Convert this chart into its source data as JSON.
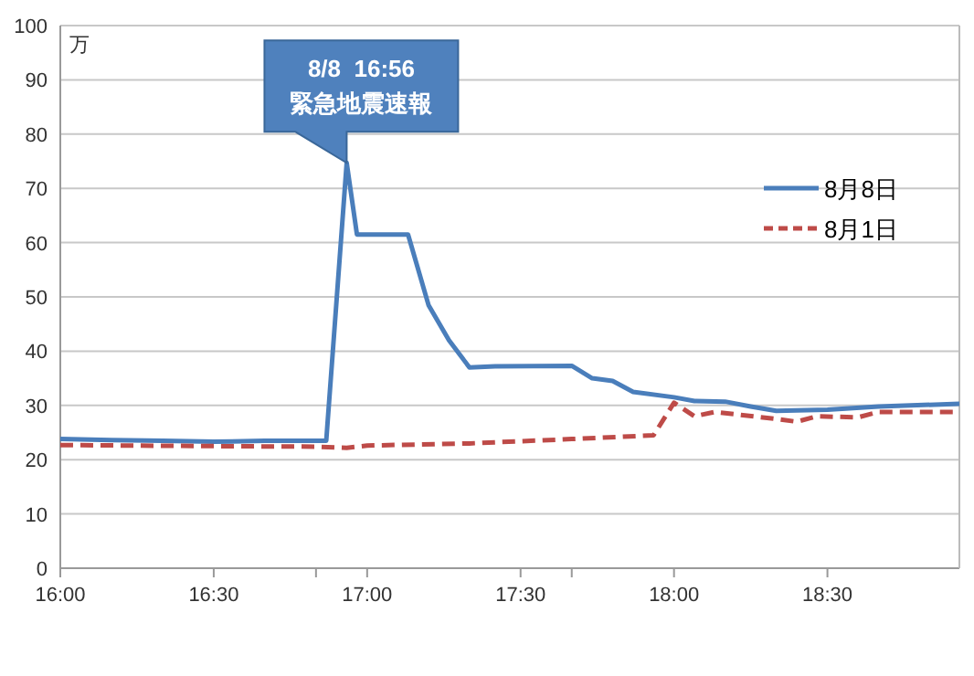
{
  "chart_data": {
    "type": "line",
    "ylabel": "万",
    "annotations": [
      {
        "text": "8/8  16:56\n緊急地震速報",
        "x": 16.9333,
        "y": 74.7
      }
    ],
    "xlim": [
      16,
      18.93
    ],
    "ylim": [
      0,
      100
    ],
    "xticks": [
      {
        "value": 16,
        "label": "16:00"
      },
      {
        "value": 16.5,
        "label": "16:30"
      },
      {
        "value": 16.8333,
        "label": null
      },
      {
        "value": 17,
        "label": "17:00"
      },
      {
        "value": 17.5,
        "label": "17:30"
      },
      {
        "value": 17.6667,
        "label": null
      },
      {
        "value": 18,
        "label": "18:00"
      },
      {
        "value": 18.5,
        "label": "18:30"
      }
    ],
    "yticks": [
      0,
      10,
      20,
      30,
      40,
      50,
      60,
      70,
      80,
      90,
      100
    ],
    "grid": "y",
    "legend": "top right",
    "marker": "none",
    "series": [
      {
        "name": "8月8日",
        "color": "#4a7ebb",
        "line_style": "solid",
        "x": [
          16,
          16.1667,
          16.3333,
          16.5,
          16.6667,
          16.8667,
          16.9333,
          16.9667,
          17.1333,
          17.2,
          17.2667,
          17.3333,
          17.4167,
          17.6667,
          17.7333,
          17.8,
          17.8667,
          18,
          18.0667,
          18.1667,
          18.25,
          18.3333,
          18.5,
          18.6667,
          18.93
        ],
        "values": [
          23.8,
          23.6,
          23.5,
          23.3,
          23.5,
          23.5,
          74.7,
          61.5,
          61.5,
          48.5,
          42,
          37,
          37.2,
          37.3,
          35,
          34.5,
          32.5,
          31.5,
          30.8,
          30.7,
          29.8,
          29,
          29.2,
          29.8,
          30.3
        ]
      },
      {
        "name": "8月1日",
        "color": "#be4b48",
        "line_style": "dashed",
        "x": [
          16,
          16.5,
          16.8333,
          16.9333,
          17,
          17.3333,
          17.6667,
          17.9333,
          18,
          18.0667,
          18.1333,
          18.3333,
          18.4,
          18.4667,
          18.6,
          18.6667,
          18.93
        ],
        "values": [
          22.7,
          22.5,
          22.4,
          22.2,
          22.6,
          23,
          23.8,
          24.5,
          30.5,
          28,
          28.8,
          27.5,
          27,
          28,
          27.8,
          28.8,
          28.8
        ]
      }
    ]
  }
}
